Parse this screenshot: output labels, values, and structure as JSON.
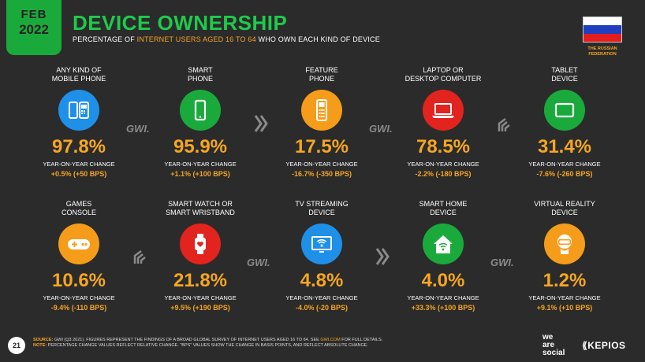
{
  "header": {
    "month": "FEB",
    "year": "2022",
    "title": "DEVICE OWNERSHIP",
    "subtitle_pre": "PERCENTAGE OF ",
    "subtitle_hl": "INTERNET USERS AGED 16 TO 64",
    "subtitle_post": " WHO OWN EACH KIND OF DEVICE"
  },
  "country": {
    "label_line1": "THE RUSSIAN",
    "label_line2": "FEDERATION",
    "flag_colors": [
      "#ffffff",
      "#1f3fbf",
      "#e31d1d"
    ]
  },
  "yoy_label": "YEAR-ON-YEAR CHANGE",
  "chart_data": {
    "type": "table",
    "columns": [
      "device",
      "share",
      "yoy_change"
    ],
    "rows": [
      {
        "label1": "ANY KIND OF",
        "label2": "MOBILE PHONE",
        "value": "97.8%",
        "change": "+0.5% (+50 BPS)",
        "icon": "mobile-phones-icon",
        "color": "#1e90e8"
      },
      {
        "label1": "SMART",
        "label2": "PHONE",
        "value": "95.9%",
        "change": "+1.1% (+100 BPS)",
        "icon": "smartphone-icon",
        "color": "#1aaa3c"
      },
      {
        "label1": "FEATURE",
        "label2": "PHONE",
        "value": "17.5%",
        "change": "-16.7% (-350 BPS)",
        "icon": "feature-phone-icon",
        "color": "#f59c1a"
      },
      {
        "label1": "LAPTOP OR",
        "label2": "DESKTOP COMPUTER",
        "value": "78.5%",
        "change": "-2.2% (-180 BPS)",
        "icon": "laptop-icon",
        "color": "#e3231e"
      },
      {
        "label1": "TABLET",
        "label2": "DEVICE",
        "value": "31.4%",
        "change": "-7.6% (-260 BPS)",
        "icon": "tablet-icon",
        "color": "#1aaa3c"
      },
      {
        "label1": "GAMES",
        "label2": "CONSOLE",
        "value": "10.6%",
        "change": "-9.4% (-110 BPS)",
        "icon": "gamepad-icon",
        "color": "#f59c1a"
      },
      {
        "label1": "SMART WATCH OR",
        "label2": "SMART WRISTBAND",
        "value": "21.8%",
        "change": "+9.5% (+190 BPS)",
        "icon": "smartwatch-icon",
        "color": "#e3231e"
      },
      {
        "label1": "TV STREAMING",
        "label2": "DEVICE",
        "value": "4.8%",
        "change": "-4.0% (-20 BPS)",
        "icon": "tv-streaming-icon",
        "color": "#1e90e8"
      },
      {
        "label1": "SMART HOME",
        "label2": "DEVICE",
        "value": "4.0%",
        "change": "+33.3% (+100 BPS)",
        "icon": "smart-home-icon",
        "color": "#1aaa3c"
      },
      {
        "label1": "VIRTUAL REALITY",
        "label2": "DEVICE",
        "value": "1.2%",
        "change": "+9.1% (+10 BPS)",
        "icon": "vr-headset-icon",
        "color": "#f59c1a"
      }
    ]
  },
  "logos": {
    "gwi": "GWI.",
    "was_line1": "we",
    "was_line2": "are",
    "was_line3": "social",
    "kepios": "KEPIOS"
  },
  "footer": {
    "page": "21",
    "source_label": "SOURCE:",
    "source_text": " GWI (Q3 2021). FIGURES REPRESENT THE FINDINGS OF A BROAD GLOBAL SURVEY OF INTERNET USERS AGED 16 TO 64. SEE ",
    "source_link": "GWI.COM",
    "source_tail": " FOR FULL DETAILS.",
    "note_label": "NOTE:",
    "note_text": " PERCENTAGE CHANGE VALUES REFLECT RELATIVE CHANGE. \"BPS\" VALUES SHOW THE CHANGE IN BASIS POINTS, AND REFLECT ABSOLUTE CHANGE."
  }
}
